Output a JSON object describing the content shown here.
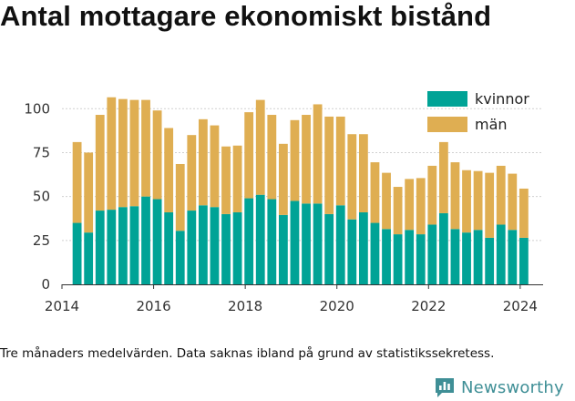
{
  "title": "Antal mottagare ekonomiskt bistånd",
  "footnote": "Tre månaders medelvärden. Data saknas ibland på grund av statistikssekretess.",
  "brand": {
    "name": "Newsworthy",
    "icon": "bar-chart-logo-icon",
    "color": "#3f8f96"
  },
  "chart_data": {
    "type": "bar",
    "stacked": true,
    "title": "Antal mottagare ekonomiskt bistånd",
    "xlabel": "",
    "ylabel": "",
    "xlim": [
      2014,
      2024.5
    ],
    "ylim": [
      0,
      110
    ],
    "x_ticks": [
      "2014",
      "2016",
      "2018",
      "2020",
      "2022",
      "2024"
    ],
    "y_ticks": [
      "0",
      "25",
      "50",
      "75",
      "100"
    ],
    "grid": "horizontal",
    "legend_position": "top-right",
    "x": [
      2014.33,
      2014.58,
      2014.83,
      2015.08,
      2015.33,
      2015.58,
      2015.83,
      2016.08,
      2016.33,
      2016.58,
      2016.83,
      2017.08,
      2017.33,
      2017.58,
      2017.83,
      2018.08,
      2018.33,
      2018.58,
      2018.83,
      2019.08,
      2019.33,
      2019.58,
      2019.83,
      2020.08,
      2020.33,
      2020.58,
      2020.83,
      2021.08,
      2021.33,
      2021.58,
      2021.83,
      2022.08,
      2022.33,
      2022.58,
      2022.83,
      2023.08,
      2023.33,
      2023.58,
      2023.83,
      2024.08
    ],
    "series": [
      {
        "name": "kvinnor",
        "color": "#00a396",
        "values": [
          35,
          29.5,
          42,
          42.5,
          44,
          44.5,
          50,
          48.5,
          41,
          30.5,
          42,
          45,
          44,
          40,
          41,
          49,
          51,
          48.5,
          39.5,
          47.5,
          46,
          46,
          40,
          45,
          37,
          41,
          35,
          31.5,
          28.5,
          31,
          28.5,
          34,
          40.5,
          31.5,
          29.5,
          31,
          26.5,
          34,
          31,
          26.5
        ]
      },
      {
        "name": "män",
        "color": "#dfae52",
        "values": [
          46,
          45.5,
          54.5,
          64,
          61.5,
          60.5,
          55,
          50.5,
          48,
          38,
          43,
          49,
          46.5,
          38.5,
          38,
          49,
          54,
          48,
          40.5,
          46,
          50.5,
          56.5,
          55.5,
          50.5,
          48.5,
          44.5,
          34.5,
          32,
          27,
          29,
          32,
          33.5,
          40.5,
          38,
          35.5,
          33.5,
          37,
          33.5,
          32,
          28
        ]
      }
    ]
  }
}
